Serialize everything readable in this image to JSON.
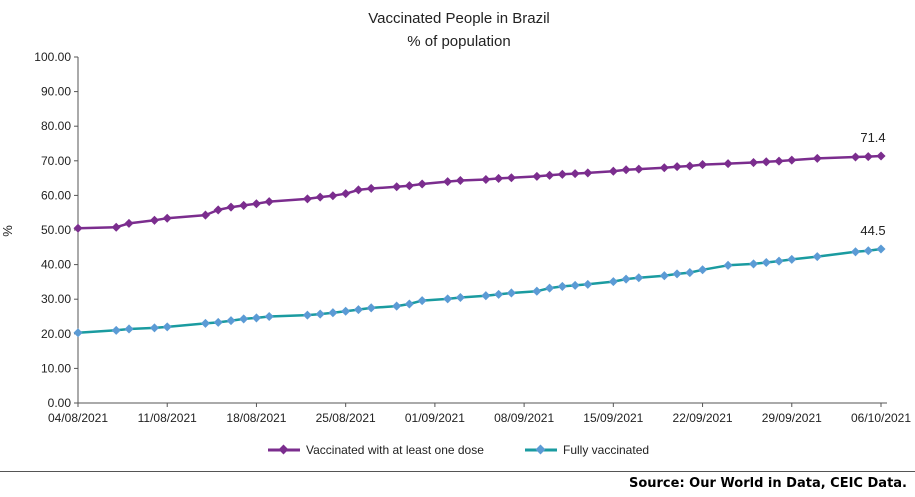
{
  "chart_data": {
    "type": "line",
    "title": "Vaccinated People in Brazil",
    "subtitle": "% of population",
    "ylabel": "%",
    "xlabel": "",
    "ylim": [
      0,
      100
    ],
    "yticks": [
      "0.00",
      "10.00",
      "20.00",
      "30.00",
      "40.00",
      "50.00",
      "60.00",
      "70.00",
      "80.00",
      "90.00",
      "100.00"
    ],
    "x_start": "2021-08-04",
    "xtick_labels": [
      "04/08/2021",
      "11/08/2021",
      "18/08/2021",
      "25/08/2021",
      "01/09/2021",
      "08/09/2021",
      "15/09/2021",
      "22/09/2021",
      "29/09/2021",
      "06/10/2021"
    ],
    "x": [
      "2021-08-04",
      "2021-08-07",
      "2021-08-08",
      "2021-08-10",
      "2021-08-11",
      "2021-08-14",
      "2021-08-15",
      "2021-08-16",
      "2021-08-17",
      "2021-08-18",
      "2021-08-19",
      "2021-08-22",
      "2021-08-23",
      "2021-08-24",
      "2021-08-25",
      "2021-08-26",
      "2021-08-27",
      "2021-08-29",
      "2021-08-30",
      "2021-08-31",
      "2021-09-02",
      "2021-09-03",
      "2021-09-05",
      "2021-09-06",
      "2021-09-07",
      "2021-09-09",
      "2021-09-10",
      "2021-09-11",
      "2021-09-12",
      "2021-09-13",
      "2021-09-15",
      "2021-09-16",
      "2021-09-17",
      "2021-09-19",
      "2021-09-20",
      "2021-09-21",
      "2021-09-22",
      "2021-09-24",
      "2021-09-26",
      "2021-09-27",
      "2021-09-28",
      "2021-09-29",
      "2021-10-01",
      "2021-10-04",
      "2021-10-05",
      "2021-10-06"
    ],
    "series": [
      {
        "name": "Vaccinated with at least one dose",
        "color": "#7B2D8E",
        "values": [
          50.5,
          50.8,
          51.9,
          52.8,
          53.4,
          54.3,
          55.8,
          56.6,
          57.1,
          57.6,
          58.2,
          59.0,
          59.5,
          59.9,
          60.5,
          61.6,
          62.0,
          62.5,
          62.8,
          63.3,
          64.0,
          64.3,
          64.6,
          64.9,
          65.1,
          65.5,
          65.8,
          66.1,
          66.3,
          66.5,
          67.0,
          67.4,
          67.6,
          68.0,
          68.3,
          68.5,
          68.9,
          69.2,
          69.5,
          69.7,
          69.9,
          70.2,
          70.7,
          71.1,
          71.2,
          71.4
        ],
        "label": "71.4"
      },
      {
        "name": "Fully vaccinated",
        "color": "#1A9BA0",
        "marker_color": "#5B9BD5",
        "values": [
          20.3,
          21.0,
          21.4,
          21.7,
          22.0,
          23.0,
          23.3,
          23.8,
          24.3,
          24.6,
          25.0,
          25.4,
          25.7,
          26.1,
          26.5,
          27.0,
          27.5,
          28.0,
          28.6,
          29.6,
          30.1,
          30.5,
          31.0,
          31.4,
          31.8,
          32.3,
          33.2,
          33.7,
          34.0,
          34.3,
          35.1,
          35.8,
          36.2,
          36.8,
          37.3,
          37.7,
          38.5,
          39.8,
          40.2,
          40.6,
          41.0,
          41.5,
          42.3,
          43.7,
          44.0,
          44.5
        ],
        "label": "44.5"
      }
    ],
    "legend": "bottom-center",
    "grid": false
  },
  "source": "Source: Our World in Data, CEIC Data."
}
